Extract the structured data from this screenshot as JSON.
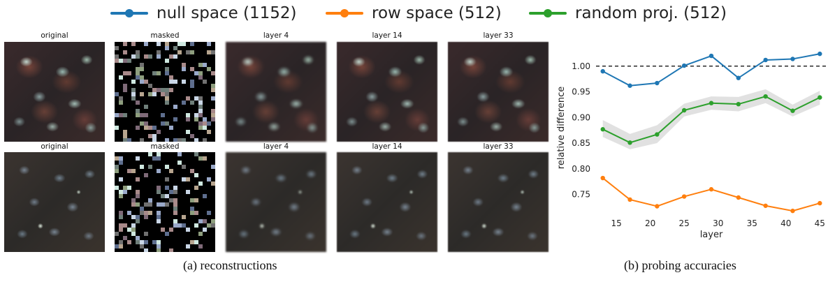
{
  "legend": [
    {
      "label": "null space (1152)",
      "color": "#1f77b4"
    },
    {
      "label": "row space (512)",
      "color": "#ff7f0e"
    },
    {
      "label": "random proj. (512)",
      "color": "#2ca02c"
    }
  ],
  "grid": {
    "row1_titles": [
      "original",
      "masked",
      "layer 4",
      "layer 14",
      "layer 33"
    ],
    "row2_titles": [
      "original",
      "masked",
      "layer 4",
      "layer 14",
      "layer 33"
    ]
  },
  "captions": {
    "left": "(a) reconstructions",
    "right": "(b) probing accuracies"
  },
  "chart_data": {
    "type": "line",
    "xlabel": "layer",
    "ylabel": "relative difference",
    "x": [
      13,
      17,
      21,
      25,
      29,
      33,
      37,
      41,
      45
    ],
    "xticks": [
      15,
      20,
      25,
      30,
      35,
      40,
      45
    ],
    "yticks": [
      0.75,
      0.8,
      0.85,
      0.9,
      0.95,
      1.0
    ],
    "xlim": [
      12,
      46
    ],
    "ylim": [
      0.71,
      1.05
    ],
    "reference_line": {
      "y": 1.0,
      "style": "dashed",
      "color": "#000000"
    },
    "series": [
      {
        "name": "null space (1152)",
        "color": "#1f77b4",
        "values": [
          0.99,
          0.962,
          0.967,
          1.001,
          1.02,
          0.977,
          1.012,
          1.014,
          1.024
        ]
      },
      {
        "name": "random proj. (512)",
        "color": "#2ca02c",
        "values": [
          0.877,
          0.851,
          0.867,
          0.914,
          0.928,
          0.926,
          0.941,
          0.913,
          0.939
        ],
        "band_low": [
          0.862,
          0.838,
          0.85,
          0.902,
          0.915,
          0.912,
          0.928,
          0.902,
          0.925
        ],
        "band_high": [
          0.895,
          0.868,
          0.885,
          0.927,
          0.941,
          0.94,
          0.955,
          0.925,
          0.952
        ]
      },
      {
        "name": "row space (512)",
        "color": "#ff7f0e",
        "values": [
          0.782,
          0.74,
          0.727,
          0.746,
          0.76,
          0.744,
          0.728,
          0.718,
          0.733
        ]
      }
    ],
    "grid": false,
    "legend_placement": "top"
  }
}
